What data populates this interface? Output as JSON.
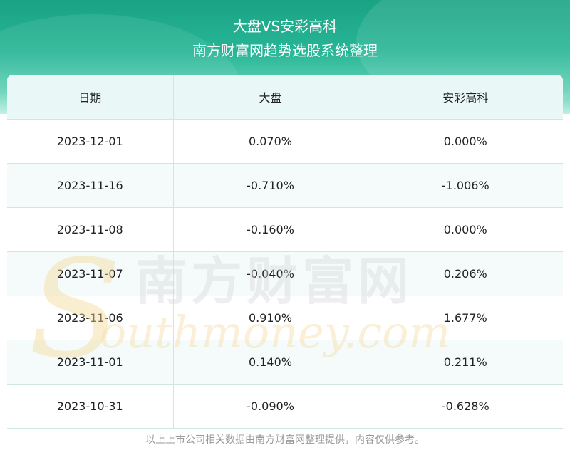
{
  "header": {
    "title": "大盘VS安彩高科",
    "subtitle": "南方财富网趋势选股系统整理"
  },
  "table": {
    "columns": [
      "日期",
      "大盘",
      "安彩高科"
    ],
    "rows": [
      [
        "2023-12-01",
        "0.070%",
        "0.000%"
      ],
      [
        "2023-11-16",
        "-0.710%",
        "-1.006%"
      ],
      [
        "2023-11-08",
        "-0.160%",
        "0.000%"
      ],
      [
        "2023-11-07",
        "-0.040%",
        "0.206%"
      ],
      [
        "2023-11-06",
        "0.910%",
        "1.677%"
      ],
      [
        "2023-11-01",
        "0.140%",
        "0.211%"
      ],
      [
        "2023-10-31",
        "-0.090%",
        "-0.628%"
      ]
    ]
  },
  "watermark": {
    "cn": "南方财富网",
    "en": "outhmoney.com",
    "logo_letter": "S"
  },
  "footer": {
    "note": "以上上市公司相关数据由南方财富网整理提供，内容仅供参考。"
  },
  "colors": {
    "header_teal": "#27b596",
    "header_row_bg": "#e9f8f6",
    "grid_line": "#cfe6e3",
    "watermark_gold": "#f5d99a",
    "watermark_gray": "#d9d9d9"
  }
}
